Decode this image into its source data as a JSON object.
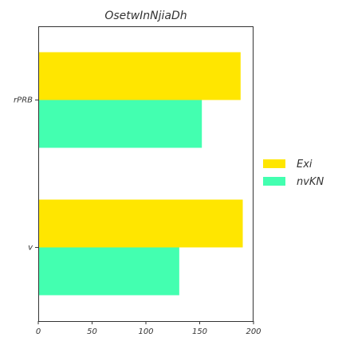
{
  "chart_data": {
    "type": "bar",
    "orientation": "horizontal",
    "title": "OsetwInNjiaDh",
    "xlabel": "",
    "ylabel": "",
    "categories": [
      "rPRB",
      "v"
    ],
    "series": [
      {
        "name": "Exi",
        "values": [
          188,
          190
        ],
        "color": "#FFE600"
      },
      {
        "name": "nvKN",
        "values": [
          152,
          131
        ],
        "color": "#43FFB0"
      }
    ],
    "xlim": [
      0,
      200
    ],
    "xticks": [
      0,
      50,
      100,
      150,
      200
    ],
    "grid": false,
    "legend_position": "right"
  }
}
